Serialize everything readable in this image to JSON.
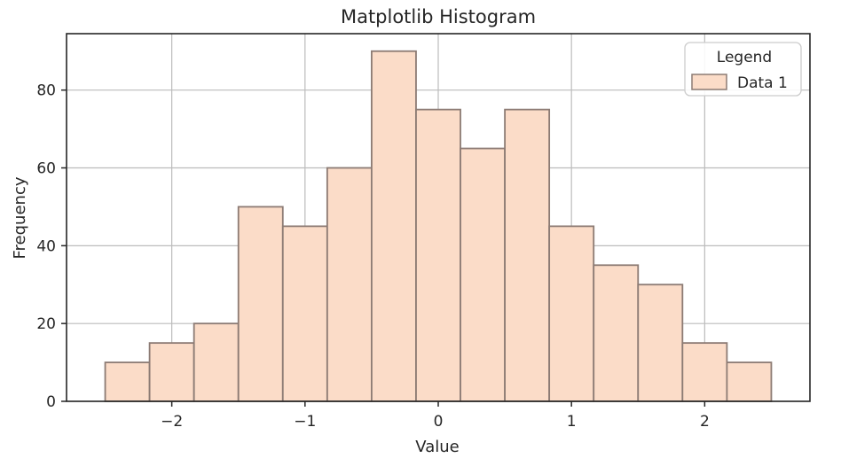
{
  "chart_data": {
    "type": "bar",
    "subtype": "histogram",
    "title": "Matplotlib Histogram",
    "xlabel": "Value",
    "ylabel": "Frequency",
    "bin_edges": [
      -2.5,
      -2.1667,
      -1.8333,
      -1.5,
      -1.1667,
      -0.8333,
      -0.5,
      -0.1667,
      0.1667,
      0.5,
      0.8333,
      1.1667,
      1.5,
      1.8333,
      2.1667,
      2.5
    ],
    "values": [
      10,
      15,
      20,
      50,
      45,
      60,
      90,
      75,
      65,
      75,
      45,
      35,
      30,
      15,
      10
    ],
    "series": [
      {
        "name": "Data 1",
        "values": [
          10,
          15,
          20,
          50,
          45,
          60,
          90,
          75,
          65,
          75,
          45,
          35,
          30,
          15,
          10
        ]
      }
    ],
    "xlim": [
      -2.79,
      2.79
    ],
    "ylim": [
      0,
      94.5
    ],
    "xticks": {
      "values": [
        -2,
        -1,
        0,
        1,
        2
      ],
      "labels": [
        "−2",
        "−1",
        "0",
        "1",
        "2"
      ]
    },
    "yticks": {
      "values": [
        0,
        20,
        40,
        60,
        80
      ],
      "labels": [
        "0",
        "20",
        "40",
        "60",
        "80"
      ]
    },
    "grid": true,
    "legend": {
      "title": "Legend",
      "position": "upper right",
      "entries": [
        {
          "label": "Data 1",
          "swatch_fill": "#fbdcc8",
          "swatch_edge": "#8c7b74"
        }
      ]
    },
    "colors": {
      "bar_fill": "#fbdcc8",
      "bar_edge": "#8c7b74",
      "grid": "#bcbcbc",
      "spine": "#262626",
      "text": "#262626",
      "legend_border": "#cccccc",
      "legend_bg": "#ffffff"
    }
  }
}
